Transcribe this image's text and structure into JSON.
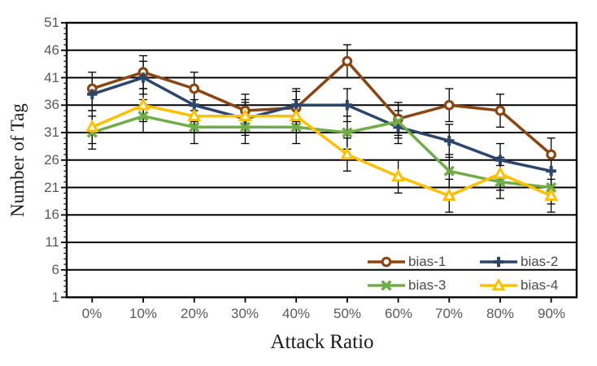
{
  "chart_data": {
    "type": "line",
    "title": "",
    "xlabel": "Attack Ratio",
    "ylabel": "Number of Tag",
    "categories": [
      "0%",
      "10%",
      "20%",
      "30%",
      "40%",
      "50%",
      "60%",
      "70%",
      "80%",
      "90%"
    ],
    "series": [
      {
        "name": "bias-1",
        "color": "#8B4513",
        "marker": "circle",
        "values": [
          39,
          42,
          39,
          35,
          35.5,
          44,
          33.5,
          36,
          35,
          27
        ]
      },
      {
        "name": "bias-2",
        "color": "#2B456B",
        "marker": "plus",
        "values": [
          38,
          41,
          36,
          33.5,
          36,
          36,
          32,
          29.5,
          26,
          24
        ]
      },
      {
        "name": "bias-3",
        "color": "#70AD47",
        "marker": "x",
        "values": [
          31,
          34,
          32,
          32,
          32,
          31,
          33,
          24,
          22,
          21
        ]
      },
      {
        "name": "bias-4",
        "color": "#FFC000",
        "marker": "triangle",
        "values": [
          32,
          36,
          34,
          34,
          34,
          27,
          23,
          19.5,
          23.5,
          19.5
        ]
      }
    ],
    "error_bar_plus_minus": 3,
    "ylim": [
      1,
      51
    ],
    "yticks": [
      51,
      46,
      41,
      36,
      31,
      26,
      21,
      16,
      11,
      6,
      1
    ],
    "y_minor_tick_step": 1,
    "grid": "horizontal-major",
    "plot_border": true,
    "legend_position": "inside-bottom-right",
    "axis_color": "#000000",
    "tick_label_color": "#595959"
  }
}
